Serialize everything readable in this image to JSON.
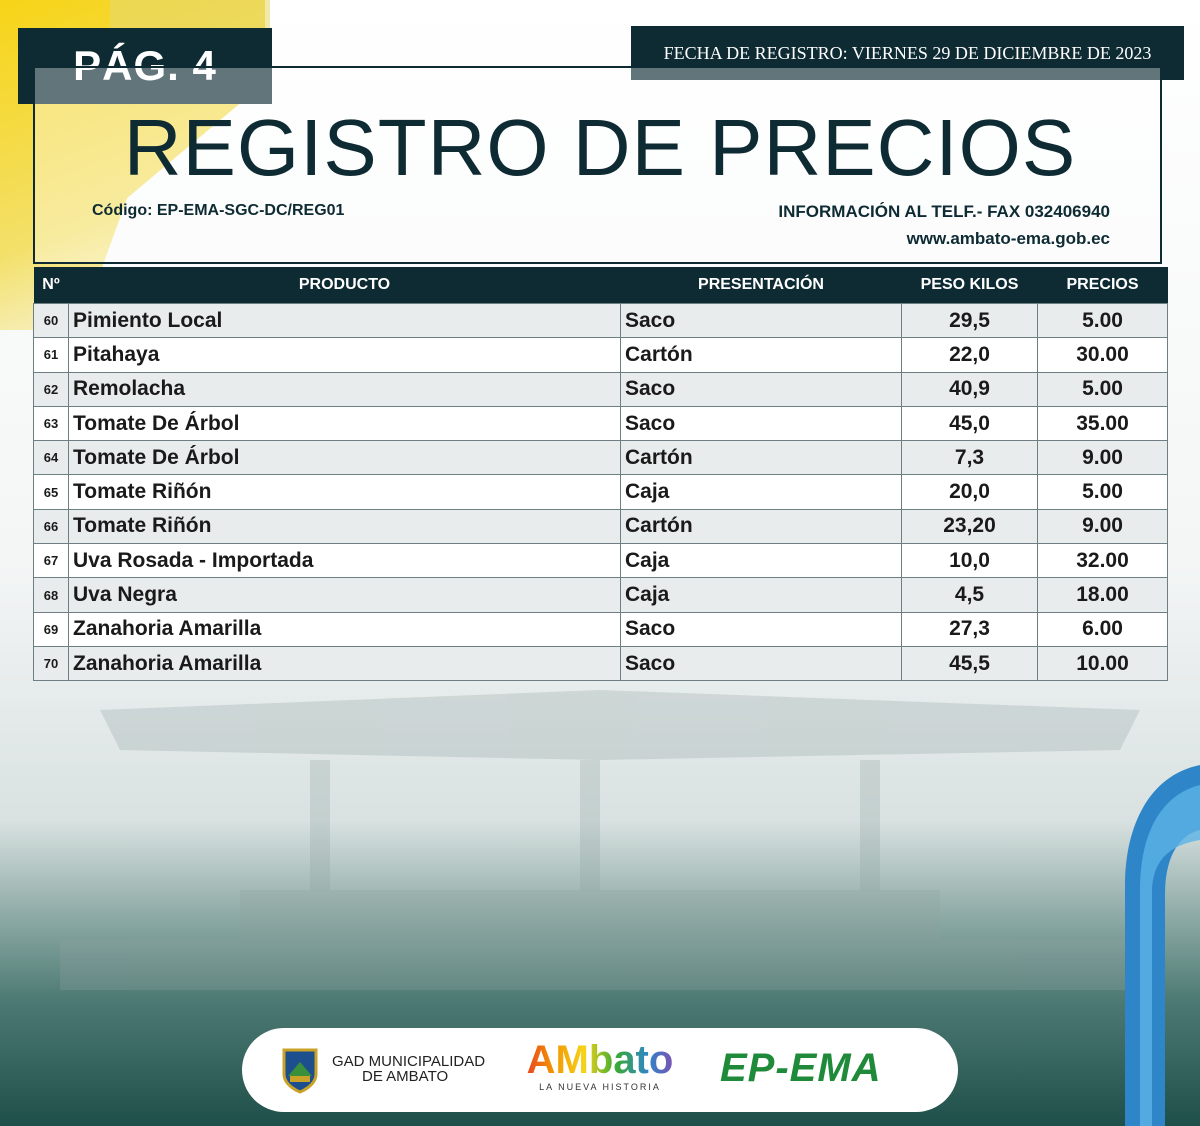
{
  "page_label": "PÁG. 4",
  "date_text": "FECHA DE REGISTRO: VIERNES 29  DE DICIEMBRE DE 2023",
  "title": "REGISTRO DE PRECIOS",
  "codigo": "Código: EP-EMA-SGC-DC/REG01",
  "info": "INFORMACIÓN AL TELF.- FAX 032406940",
  "website": "www.ambato-ema.gob.ec",
  "table": {
    "headers": [
      "Nº",
      "PRODUCTO",
      "PRESENTACIÓN",
      "PESO KILOS",
      "PRECIOS"
    ],
    "rows": [
      [
        "60",
        "Pimiento Local",
        "Saco",
        "29,5",
        "5.00"
      ],
      [
        "61",
        "Pitahaya",
        "Cartón",
        "22,0",
        "30.00"
      ],
      [
        "62",
        "Remolacha",
        "Saco",
        "40,9",
        "5.00"
      ],
      [
        "63",
        "Tomate De Árbol",
        "Saco",
        "45,0",
        "35.00"
      ],
      [
        "64",
        "Tomate De Árbol",
        "Cartón",
        "7,3",
        "9.00"
      ],
      [
        "65",
        "Tomate Riñón",
        "Caja",
        "20,0",
        "5.00"
      ],
      [
        "66",
        "Tomate Riñón",
        "Cartón",
        "23,20",
        "9.00"
      ],
      [
        "67",
        "Uva Rosada - Importada",
        "Caja",
        "10,0",
        "32.00"
      ],
      [
        "68",
        "Uva Negra",
        "Caja",
        "4,5",
        "18.00"
      ],
      [
        "69",
        "Zanahoria Amarilla",
        "Saco",
        "27,3",
        "6.00"
      ],
      [
        "70",
        "Zanahoria Amarilla",
        "Saco",
        "45,5",
        "10.00"
      ]
    ]
  },
  "footer": {
    "gad_line1": "GAD MUNICIPALIDAD",
    "gad_line2": "DE AMBATO",
    "ambato_logo": "AMbato",
    "ambato_tagline": "LA NUEVA HISTORIA",
    "epema_logo": "EP-EMA"
  },
  "colors": {
    "navy": "#0e2b33",
    "row_alt": "#e9eced",
    "epema_green": "#1f8a3a"
  }
}
